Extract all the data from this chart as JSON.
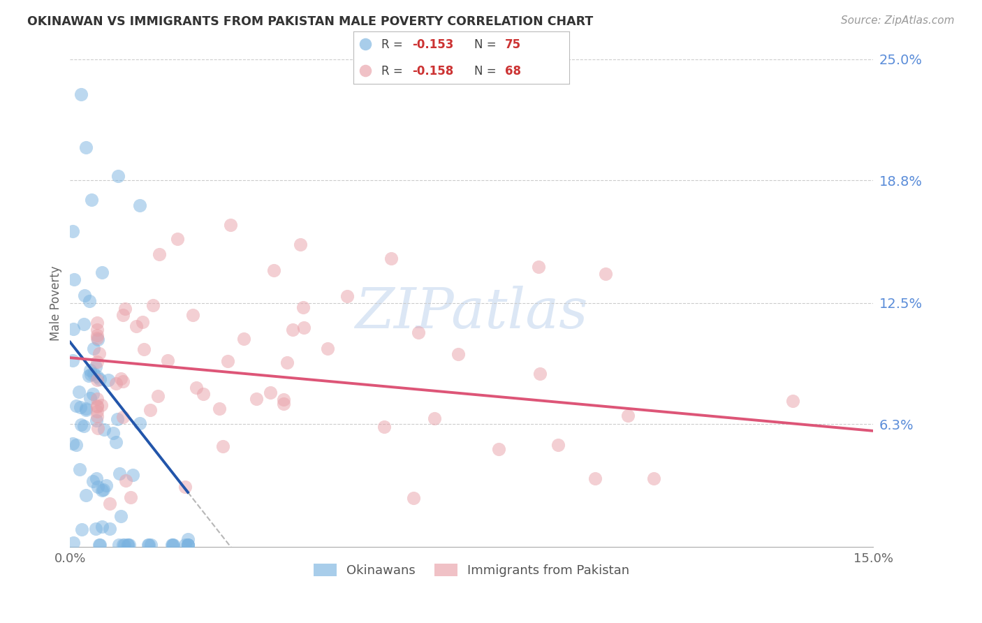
{
  "title": "OKINAWAN VS IMMIGRANTS FROM PAKISTAN MALE POVERTY CORRELATION CHART",
  "source": "Source: ZipAtlas.com",
  "ylabel": "Male Poverty",
  "xlim": [
    0.0,
    0.15
  ],
  "ylim": [
    0.0,
    0.25
  ],
  "ytick_labels": [
    "6.3%",
    "12.5%",
    "18.8%",
    "25.0%"
  ],
  "ytick_values": [
    0.063,
    0.125,
    0.188,
    0.25
  ],
  "r_okinawan": -0.153,
  "n_okinawan": 75,
  "r_pakistan": -0.158,
  "n_pakistan": 68,
  "watermark": "ZIPatlas",
  "okinawan_color": "#7ab3e0",
  "pakistan_color": "#e8a0a8",
  "okinawan_line_color": "#2255aa",
  "pakistan_line_color": "#dd5577",
  "background_color": "#ffffff",
  "grid_color": "#cccccc"
}
